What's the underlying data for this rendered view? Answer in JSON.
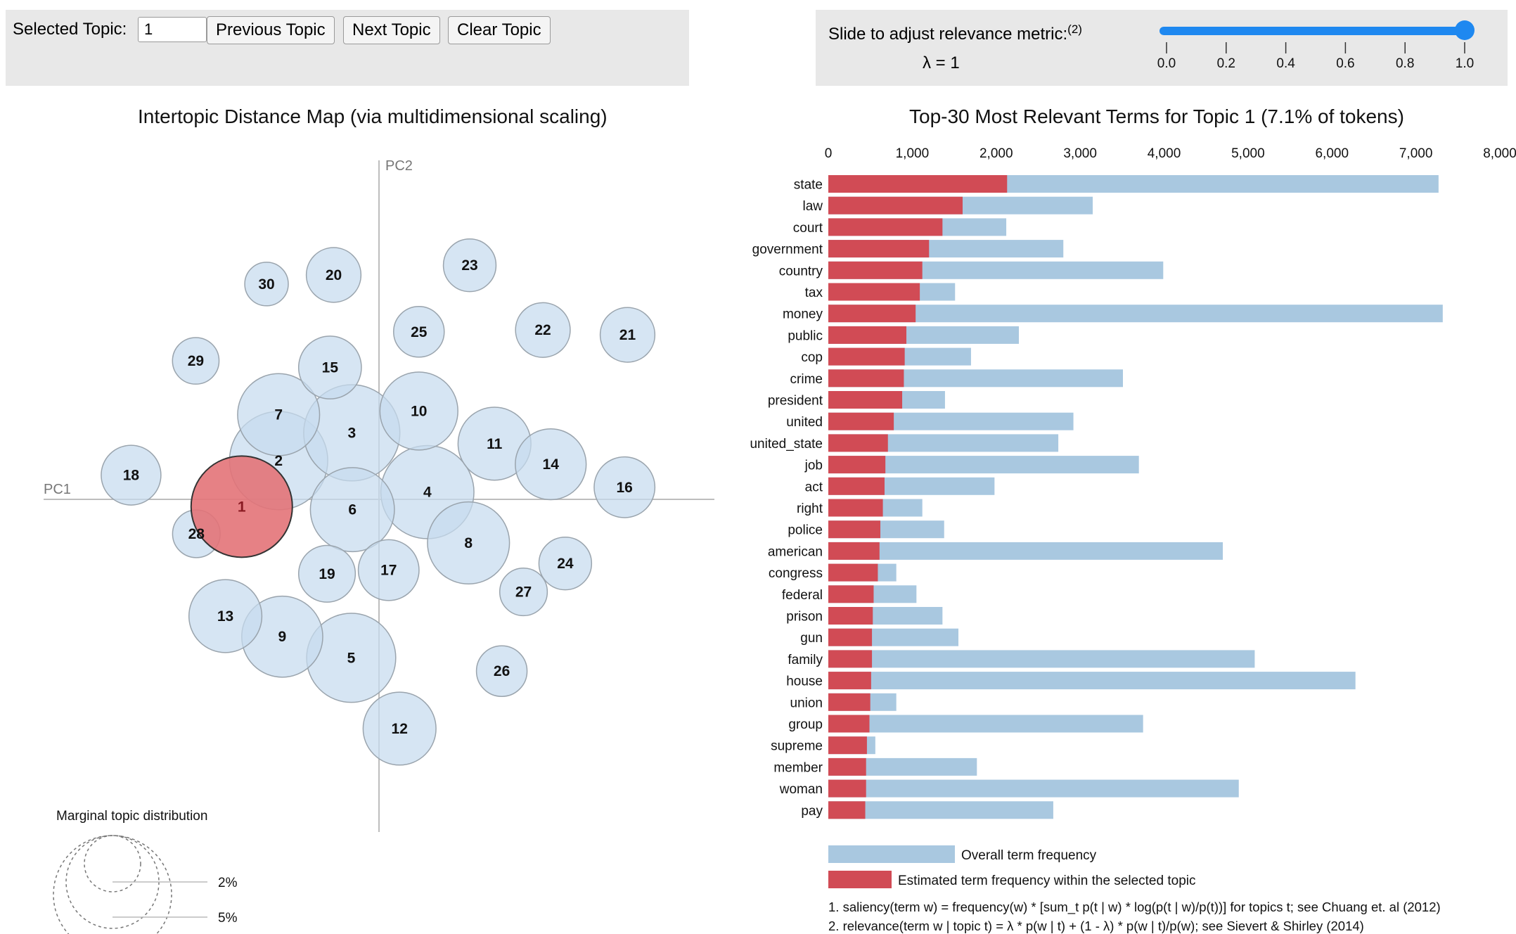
{
  "controls": {
    "selected_topic_label": "Selected Topic:",
    "selected_topic_value": "1",
    "previous_label": "Previous Topic",
    "next_label": "Next Topic",
    "clear_label": "Clear Topic"
  },
  "relevance": {
    "label": "Slide to adjust relevance metric:",
    "footnote_mark": "(2)",
    "lambda_text": "λ = 1",
    "lambda_value": 1.0,
    "ticks": [
      "0.0",
      "0.2",
      "0.4",
      "0.6",
      "0.8",
      "1.0"
    ]
  },
  "colors": {
    "overall": "#a9c8e0",
    "estimated": "#d14b55",
    "circle": "#c6dbee",
    "selected_circle": "#e37378",
    "slider": "#1e88f0"
  },
  "chart_data": [
    {
      "type": "scatter",
      "title": "Intertopic Distance Map (via multidimensional scaling)",
      "xlabel": "PC1",
      "ylabel": "PC2",
      "selected_topic": 1,
      "xlim": [
        -4.5,
        4.5
      ],
      "ylim": [
        -4.5,
        4.5
      ],
      "topics": [
        {
          "id": 1,
          "x": -2.27,
          "y": -0.12,
          "r": 1.0
        },
        {
          "id": 2,
          "x": -1.66,
          "y": 0.64,
          "r": 0.97
        },
        {
          "id": 3,
          "x": -0.45,
          "y": 1.1,
          "r": 0.95
        },
        {
          "id": 4,
          "x": 0.8,
          "y": 0.12,
          "r": 0.92
        },
        {
          "id": 5,
          "x": -0.46,
          "y": -2.62,
          "r": 0.88
        },
        {
          "id": 6,
          "x": -0.44,
          "y": -0.17,
          "r": 0.83
        },
        {
          "id": 7,
          "x": -1.66,
          "y": 1.4,
          "r": 0.81
        },
        {
          "id": 8,
          "x": 1.48,
          "y": -0.72,
          "r": 0.81
        },
        {
          "id": 9,
          "x": -1.6,
          "y": -2.27,
          "r": 0.8
        },
        {
          "id": 10,
          "x": 0.66,
          "y": 1.46,
          "r": 0.77
        },
        {
          "id": 11,
          "x": 1.91,
          "y": 0.92,
          "r": 0.72
        },
        {
          "id": 12,
          "x": 0.34,
          "y": -3.79,
          "r": 0.72
        },
        {
          "id": 13,
          "x": -2.54,
          "y": -1.93,
          "r": 0.72
        },
        {
          "id": 14,
          "x": 2.84,
          "y": 0.58,
          "r": 0.7
        },
        {
          "id": 15,
          "x": -0.81,
          "y": 2.18,
          "r": 0.62
        },
        {
          "id": 16,
          "x": 4.06,
          "y": 0.2,
          "r": 0.6
        },
        {
          "id": 17,
          "x": 0.16,
          "y": -1.17,
          "r": 0.6
        },
        {
          "id": 18,
          "x": -4.1,
          "y": 0.4,
          "r": 0.59
        },
        {
          "id": 19,
          "x": -0.86,
          "y": -1.23,
          "r": 0.56
        },
        {
          "id": 20,
          "x": -0.75,
          "y": 3.71,
          "r": 0.54
        },
        {
          "id": 21,
          "x": 4.11,
          "y": 2.72,
          "r": 0.54
        },
        {
          "id": 22,
          "x": 2.71,
          "y": 2.8,
          "r": 0.54
        },
        {
          "id": 23,
          "x": 1.5,
          "y": 3.87,
          "r": 0.52
        },
        {
          "id": 24,
          "x": 3.08,
          "y": -1.06,
          "r": 0.52
        },
        {
          "id": 25,
          "x": 0.66,
          "y": 2.77,
          "r": 0.5
        },
        {
          "id": 26,
          "x": 2.03,
          "y": -2.84,
          "r": 0.5
        },
        {
          "id": 27,
          "x": 2.39,
          "y": -1.53,
          "r": 0.47
        },
        {
          "id": 28,
          "x": -3.02,
          "y": -0.57,
          "r": 0.47
        },
        {
          "id": 29,
          "x": -3.03,
          "y": 2.29,
          "r": 0.46
        },
        {
          "id": 30,
          "x": -1.86,
          "y": 3.56,
          "r": 0.43
        }
      ],
      "legend": {
        "title": "Marginal topic distribution",
        "entries": [
          "2%",
          "5%"
        ]
      }
    },
    {
      "type": "bar",
      "orientation": "horizontal",
      "stacked_overlay": true,
      "title": "Top-30 Most Relevant Terms for Topic 1 (7.1% of tokens)",
      "xlim": [
        0,
        8000
      ],
      "xticks": [
        0,
        1000,
        2000,
        3000,
        4000,
        5000,
        6000,
        7000,
        8000
      ],
      "xtick_labels": [
        "0",
        "1,000",
        "2,000",
        "3,000",
        "4,000",
        "5,000",
        "6,000",
        "7,000",
        "8,000"
      ],
      "categories": [
        "state",
        "law",
        "court",
        "government",
        "country",
        "tax",
        "money",
        "public",
        "cop",
        "crime",
        "president",
        "united",
        "united_state",
        "job",
        "act",
        "right",
        "police",
        "american",
        "congress",
        "federal",
        "prison",
        "gun",
        "family",
        "house",
        "union",
        "group",
        "supreme",
        "member",
        "woman",
        "pay"
      ],
      "series": [
        {
          "name": "Overall term frequency",
          "values": [
            7270,
            3150,
            2120,
            2800,
            3990,
            1510,
            7320,
            2270,
            1700,
            3510,
            1390,
            2920,
            2740,
            3700,
            1980,
            1120,
            1380,
            4700,
            810,
            1050,
            1360,
            1550,
            5080,
            6280,
            810,
            3750,
            560,
            1770,
            4890,
            2680
          ]
        },
        {
          "name": "Estimated term frequency within the selected topic",
          "values": [
            2130,
            1600,
            1360,
            1200,
            1120,
            1090,
            1040,
            930,
            910,
            900,
            880,
            780,
            710,
            680,
            670,
            650,
            620,
            610,
            590,
            540,
            530,
            520,
            520,
            510,
            500,
            490,
            460,
            450,
            450,
            440
          ]
        }
      ],
      "legend_entries": [
        "Overall term frequency",
        "Estimated term frequency within the selected topic"
      ],
      "footnotes": [
        "1. saliency(term w) = frequency(w) * [sum_t p(t | w) * log(p(t | w)/p(t))] for topics t; see Chuang et. al (2012)",
        "2. relevance(term w | topic t) = λ * p(w | t) + (1 - λ) * p(w | t)/p(w); see Sievert & Shirley (2014)"
      ]
    }
  ]
}
